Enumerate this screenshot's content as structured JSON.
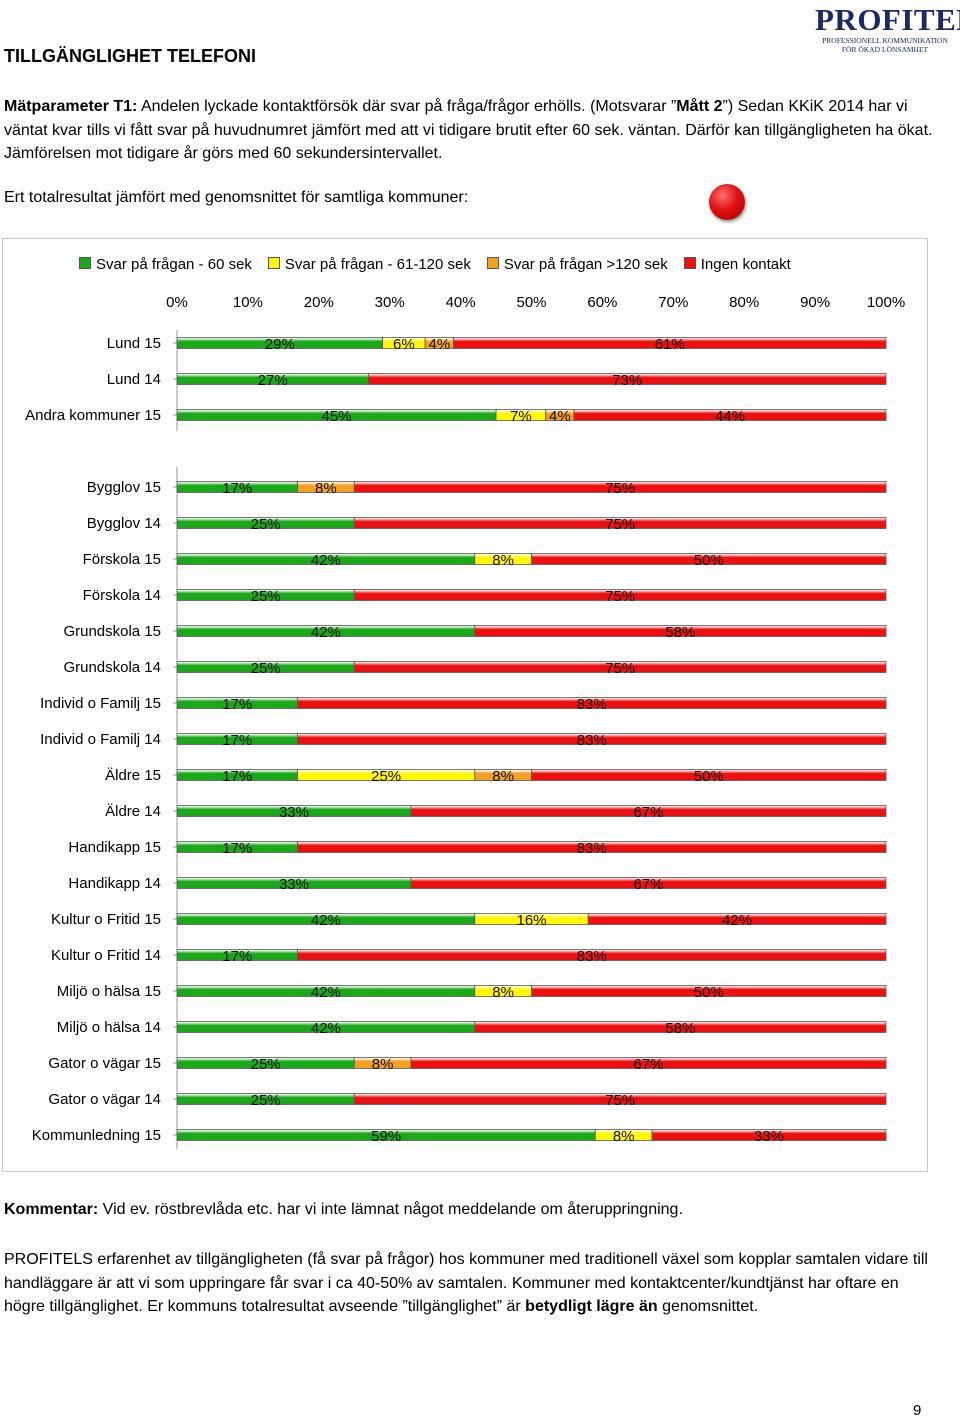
{
  "logo": {
    "main": "PROFITEL",
    "reg": "®",
    "sub1": "PROFESSIONELL KOMMUNIKATION",
    "sub2": "FÖR ÖKAD LÖNSAMHET"
  },
  "page_title": "TILLGÄNGLIGHET TELEFONI",
  "intro": {
    "label": "Mätparameter T1:",
    "text1": " Andelen lyckade kontaktförsök där svar på fråga/frågor erhölls. (Motsvarar ”",
    "bold1": "Mått 2",
    "text2": "”) Sedan KKiK 2014 har vi väntat kvar tills vi fått svar på huvudnumret jämfört med att vi tidigare brutit efter 60 sek. väntan. Därför kan tillgängligheten ha ökat. Jämförelsen mot tidigare år görs med 60 sekundersintervallet."
  },
  "compare_line": "Ert totalresultat jämfört med genomsnittet för samtliga kommuner:",
  "colors": {
    "green": "#1aa81a",
    "yellow": "#fff800",
    "orange": "#f4a020",
    "red": "#ee1010"
  },
  "chart_data": {
    "type": "bar",
    "orientation": "horizontal",
    "stacked": true,
    "x_ticks": [
      "0%",
      "10%",
      "20%",
      "30%",
      "40%",
      "50%",
      "60%",
      "70%",
      "80%",
      "90%",
      "100%"
    ],
    "xlim": [
      0,
      100
    ],
    "legend_position": "top",
    "series": [
      {
        "name": "Svar på frågan - 60 sek",
        "color": "#1aa81a",
        "icon": "green-square"
      },
      {
        "name": "Svar på frågan - 61-120 sek",
        "color": "#fff800",
        "icon": "yellow-square"
      },
      {
        "name": "Svar på frågan >120 sek",
        "color": "#f4a020",
        "icon": "orange-square"
      },
      {
        "name": "Ingen kontakt",
        "color": "#ee1010",
        "icon": "red-square"
      }
    ],
    "groups": [
      {
        "rows": [
          {
            "label": "Lund 15",
            "values": [
              29,
              6,
              4,
              61
            ]
          },
          {
            "label": "Lund 14",
            "values": [
              27,
              0,
              0,
              73
            ]
          },
          {
            "label": "Andra kommuner 15",
            "values": [
              45,
              7,
              4,
              44
            ]
          }
        ]
      },
      {
        "rows": [
          {
            "label": "Bygglov 15",
            "values": [
              17,
              0,
              8,
              75
            ]
          },
          {
            "label": "Bygglov 14",
            "values": [
              25,
              0,
              0,
              75
            ]
          },
          {
            "label": "Förskola 15",
            "values": [
              42,
              8,
              0,
              50
            ]
          },
          {
            "label": "Förskola 14",
            "values": [
              25,
              0,
              0,
              75
            ]
          },
          {
            "label": "Grundskola 15",
            "values": [
              42,
              0,
              0,
              58
            ]
          },
          {
            "label": "Grundskola 14",
            "values": [
              25,
              0,
              0,
              75
            ]
          },
          {
            "label": "Individ o Familj 15",
            "values": [
              17,
              0,
              0,
              83
            ]
          },
          {
            "label": "Individ o Familj 14",
            "values": [
              17,
              0,
              0,
              83
            ]
          },
          {
            "label": "Äldre 15",
            "values": [
              17,
              25,
              8,
              50
            ]
          },
          {
            "label": "Äldre 14",
            "values": [
              33,
              0,
              0,
              67
            ]
          },
          {
            "label": "Handikapp 15",
            "values": [
              17,
              0,
              0,
              83
            ]
          },
          {
            "label": "Handikapp 14",
            "values": [
              33,
              0,
              0,
              67
            ]
          },
          {
            "label": "Kultur o Fritid 15",
            "values": [
              42,
              16,
              0,
              42
            ]
          },
          {
            "label": "Kultur o Fritid 14",
            "values": [
              17,
              0,
              0,
              83
            ]
          },
          {
            "label": "Miljö o hälsa 15",
            "values": [
              42,
              8,
              0,
              50
            ]
          },
          {
            "label": "Miljö o hälsa 14",
            "values": [
              42,
              0,
              0,
              58
            ]
          },
          {
            "label": "Gator o vägar 15",
            "values": [
              25,
              0,
              8,
              67
            ]
          },
          {
            "label": "Gator o vägar 14",
            "values": [
              25,
              0,
              0,
              75
            ]
          },
          {
            "label": "Kommunledning 15",
            "values": [
              59,
              8,
              0,
              33
            ]
          }
        ]
      }
    ]
  },
  "comment": {
    "label": "Kommentar:",
    "text": " Vid ev. röstbrevlåda etc. har vi inte lämnat något meddelande om återuppringning."
  },
  "paragraph": {
    "text1": "PROFITELS erfarenhet av tillgängligheten (få svar på frågor) hos kommuner med traditionell växel som kopplar samtalen vidare till handläggare är att vi som uppringare får svar i ca 40-50% av samtalen. Kommuner med kontaktcenter/kundtjänst har oftare en högre tillgänglighet. Er kommuns totalresultat avseende ”tillgänglighet” är ",
    "bold": "betydligt lägre än",
    "text2": " genomsnittet."
  },
  "page_number": "9"
}
